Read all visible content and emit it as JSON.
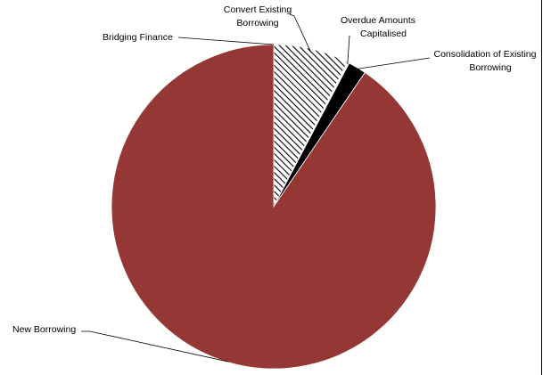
{
  "chart_data": {
    "type": "pie",
    "title": "",
    "slices": [
      {
        "label": "New Borrowing",
        "label_lines": [
          "New Borrowing"
        ],
        "value": 90.5,
        "fill": "solid",
        "color": "#953735"
      },
      {
        "label": "Bridging Finance",
        "label_lines": [
          "Bridging Finance"
        ],
        "value": 0.0,
        "fill": "solid",
        "color": "#953735"
      },
      {
        "label": "Convert Existing Borrowing",
        "label_lines": [
          "Convert Existing",
          "Borrowing"
        ],
        "value": 7.5,
        "fill": "hatch",
        "color": "#000000"
      },
      {
        "label": "Overdue Amounts Capitalised",
        "label_lines": [
          "Overdue Amounts",
          "Capitalised"
        ],
        "value": 0.2,
        "fill": "solid",
        "color": "#ffffff"
      },
      {
        "label": "Consolidation of Existing Borrowing",
        "label_lines": [
          "Consolidation of Existing",
          "Borrowing"
        ],
        "value": 1.8,
        "fill": "solid",
        "color": "#000000"
      }
    ],
    "start_slice_order": [
      "Bridging Finance",
      "Convert Existing Borrowing",
      "Overdue Amounts Capitalised",
      "Consolidation of Existing Borrowing",
      "New Borrowing"
    ],
    "legend": "none",
    "labels": "outside with leader lines"
  }
}
